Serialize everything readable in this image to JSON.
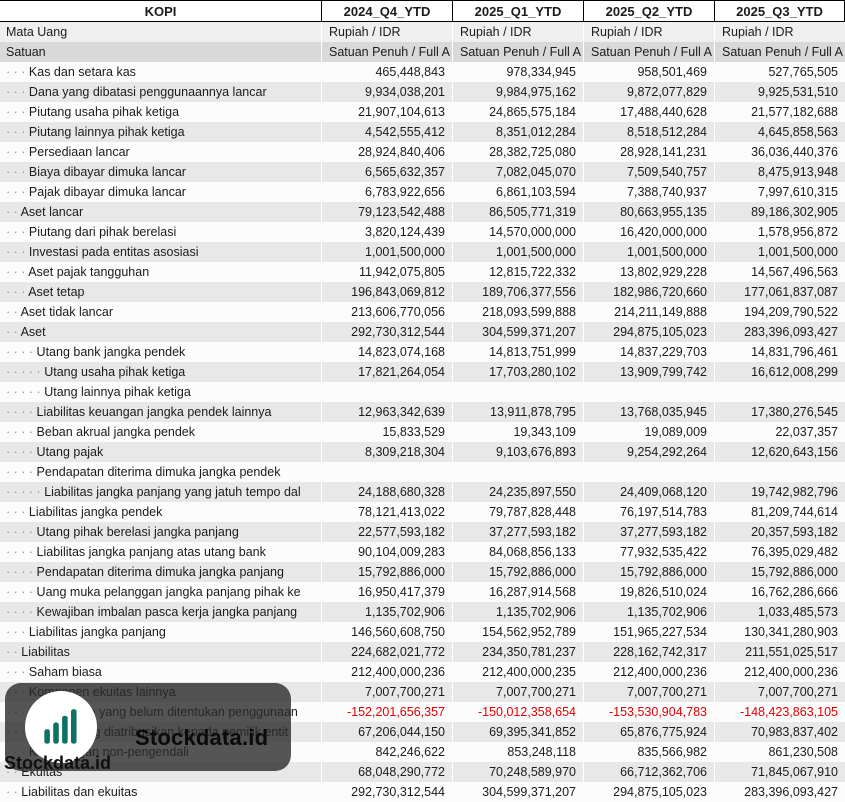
{
  "header": {
    "ticker": "KOPI",
    "columns": [
      "2024_Q4_YTD",
      "2025_Q1_YTD",
      "2025_Q2_YTD",
      "2025_Q3_YTD"
    ]
  },
  "meta_rows": [
    {
      "label": "Mata Uang",
      "values": [
        "Rupiah / IDR",
        "Rupiah / IDR",
        "Rupiah / IDR",
        "Rupiah / IDR"
      ]
    },
    {
      "label": "Satuan",
      "values": [
        "Satuan Penuh / Full A",
        "Satuan Penuh / Full A",
        "Satuan Penuh / Full A",
        "Satuan Penuh / Full A"
      ]
    }
  ],
  "rows": [
    {
      "label": "Kas dan setara kas",
      "dots": 3,
      "negative": false,
      "values": [
        "465,448,843",
        "978,334,945",
        "958,501,469",
        "527,765,505"
      ]
    },
    {
      "label": "Dana yang dibatasi penggunaannya lancar",
      "dots": 3,
      "negative": false,
      "values": [
        "9,934,038,201",
        "9,984,975,162",
        "9,872,077,829",
        "9,925,531,510"
      ]
    },
    {
      "label": "Piutang usaha pihak ketiga",
      "dots": 3,
      "negative": false,
      "values": [
        "21,907,104,613",
        "24,865,575,184",
        "17,488,440,628",
        "21,577,182,688"
      ]
    },
    {
      "label": "Piutang lainnya pihak ketiga",
      "dots": 3,
      "negative": false,
      "values": [
        "4,542,555,412",
        "8,351,012,284",
        "8,518,512,284",
        "4,645,858,563"
      ]
    },
    {
      "label": "Persediaan lancar",
      "dots": 3,
      "negative": false,
      "values": [
        "28,924,840,406",
        "28,382,725,080",
        "28,928,141,231",
        "36,036,440,376"
      ]
    },
    {
      "label": "Biaya dibayar dimuka lancar",
      "dots": 3,
      "negative": false,
      "values": [
        "6,565,632,357",
        "7,082,045,070",
        "7,509,540,757",
        "8,475,913,948"
      ]
    },
    {
      "label": "Pajak dibayar dimuka lancar",
      "dots": 3,
      "negative": false,
      "values": [
        "6,783,922,656",
        "6,861,103,594",
        "7,388,740,937",
        "7,997,610,315"
      ]
    },
    {
      "label": "Aset lancar",
      "dots": 2,
      "negative": false,
      "values": [
        "79,123,542,488",
        "86,505,771,319",
        "80,663,955,135",
        "89,186,302,905"
      ]
    },
    {
      "label": "Piutang dari pihak berelasi",
      "dots": 3,
      "negative": false,
      "values": [
        "3,820,124,439",
        "14,570,000,000",
        "16,420,000,000",
        "1,578,956,872"
      ]
    },
    {
      "label": "Investasi pada entitas asosiasi",
      "dots": 3,
      "negative": false,
      "values": [
        "1,001,500,000",
        "1,001,500,000",
        "1,001,500,000",
        "1,001,500,000"
      ]
    },
    {
      "label": "Aset pajak tangguhan",
      "dots": 3,
      "negative": false,
      "values": [
        "11,942,075,805",
        "12,815,722,332",
        "13,802,929,228",
        "14,567,496,563"
      ]
    },
    {
      "label": "Aset tetap",
      "dots": 3,
      "negative": false,
      "values": [
        "196,843,069,812",
        "189,706,377,556",
        "182,986,720,660",
        "177,061,837,087"
      ]
    },
    {
      "label": "Aset tidak lancar",
      "dots": 2,
      "negative": false,
      "values": [
        "213,606,770,056",
        "218,093,599,888",
        "214,211,149,888",
        "194,209,790,522"
      ]
    },
    {
      "label": "Aset",
      "dots": 2,
      "negative": false,
      "values": [
        "292,730,312,544",
        "304,599,371,207",
        "294,875,105,023",
        "283,396,093,427"
      ]
    },
    {
      "label": "Utang bank jangka pendek",
      "dots": 4,
      "negative": false,
      "values": [
        "14,823,074,168",
        "14,813,751,999",
        "14,837,229,703",
        "14,831,796,461"
      ]
    },
    {
      "label": "Utang usaha pihak ketiga",
      "dots": 5,
      "negative": false,
      "values": [
        "17,821,264,054",
        "17,703,280,102",
        "13,909,799,742",
        "16,612,008,299"
      ]
    },
    {
      "label": "Utang lainnya pihak ketiga",
      "dots": 5,
      "negative": false,
      "values": [
        "",
        "",
        "",
        ""
      ]
    },
    {
      "label": "Liabilitas keuangan jangka pendek lainnya",
      "dots": 4,
      "negative": false,
      "values": [
        "12,963,342,639",
        "13,911,878,795",
        "13,768,035,945",
        "17,380,276,545"
      ]
    },
    {
      "label": "Beban akrual jangka pendek",
      "dots": 4,
      "negative": false,
      "values": [
        "15,833,529",
        "19,343,109",
        "19,089,009",
        "22,037,357"
      ]
    },
    {
      "label": "Utang pajak",
      "dots": 4,
      "negative": false,
      "values": [
        "8,309,218,304",
        "9,103,676,893",
        "9,254,292,264",
        "12,620,643,156"
      ]
    },
    {
      "label": "Pendapatan diterima dimuka jangka pendek",
      "dots": 4,
      "negative": false,
      "values": [
        "",
        "",
        "",
        ""
      ]
    },
    {
      "label": "Liabilitas jangka panjang yang jatuh tempo dal",
      "dots": 5,
      "negative": false,
      "values": [
        "24,188,680,328",
        "24,235,897,550",
        "24,409,068,120",
        "19,742,982,796"
      ]
    },
    {
      "label": "Liabilitas jangka pendek",
      "dots": 3,
      "negative": false,
      "values": [
        "78,121,413,022",
        "79,787,828,448",
        "76,197,514,783",
        "81,209,744,614"
      ]
    },
    {
      "label": "Utang pihak berelasi jangka panjang",
      "dots": 4,
      "negative": false,
      "values": [
        "22,577,593,182",
        "37,277,593,182",
        "37,277,593,182",
        "20,357,593,182"
      ]
    },
    {
      "label": "Liabilitas jangka panjang atas utang bank",
      "dots": 4,
      "negative": false,
      "values": [
        "90,104,009,283",
        "84,068,856,133",
        "77,932,535,422",
        "76,395,029,482"
      ]
    },
    {
      "label": "Pendapatan diterima dimuka jangka panjang",
      "dots": 4,
      "negative": false,
      "values": [
        "15,792,886,000",
        "15,792,886,000",
        "15,792,886,000",
        "15,792,886,000"
      ]
    },
    {
      "label": "Uang muka pelanggan jangka panjang pihak ke",
      "dots": 4,
      "negative": false,
      "values": [
        "16,950,417,379",
        "16,287,914,568",
        "19,826,510,024",
        "16,762,286,666"
      ]
    },
    {
      "label": "Kewajiban imbalan pasca kerja jangka panjang",
      "dots": 4,
      "negative": false,
      "values": [
        "1,135,702,906",
        "1,135,702,906",
        "1,135,702,906",
        "1,033,485,573"
      ]
    },
    {
      "label": "Liabilitas jangka panjang",
      "dots": 3,
      "negative": false,
      "values": [
        "146,560,608,750",
        "154,562,952,789",
        "151,965,227,534",
        "130,341,280,903"
      ]
    },
    {
      "label": "Liabilitas",
      "dots": 2,
      "negative": false,
      "values": [
        "224,682,021,772",
        "234,350,781,237",
        "228,162,742,317",
        "211,551,025,517"
      ]
    },
    {
      "label": "Saham biasa",
      "dots": 3,
      "negative": false,
      "values": [
        "212,400,000,236",
        "212,400,000,235",
        "212,400,000,236",
        "212,400,000,236"
      ]
    },
    {
      "label": "Komponen ekuitas lainnya",
      "dots": 3,
      "negative": false,
      "values": [
        "7,007,700,271",
        "7,007,700,271",
        "7,007,700,271",
        "7,007,700,271"
      ]
    },
    {
      "label": "Saldo laba yang belum ditentukan penggunaan",
      "dots": 4,
      "negative": true,
      "values": [
        "-152,201,656,357",
        "-150,012,358,654",
        "-153,530,904,783",
        "-148,423,863,105"
      ]
    },
    {
      "label": "Ekuitas yang diatribusikan kepada pemilik entit",
      "dots": 3,
      "negative": false,
      "values": [
        "67,206,044,150",
        "69,395,341,852",
        "65,876,775,924",
        "70,983,837,402"
      ]
    },
    {
      "label": "Kepentingan non-pengendali",
      "dots": 3,
      "negative": false,
      "values": [
        "842,246,622",
        "853,248,118",
        "835,566,982",
        "861,230,508"
      ]
    },
    {
      "label": "Ekuitas",
      "dots": 2,
      "negative": false,
      "values": [
        "68,048,290,772",
        "70,248,589,970",
        "66,712,362,706",
        "71,845,067,910"
      ]
    },
    {
      "label": "Liabilitas dan ekuitas",
      "dots": 2,
      "negative": false,
      "values": [
        "292,730,312,544",
        "304,599,371,207",
        "294,875,105,023",
        "283,396,093,427"
      ]
    }
  ],
  "watermark": {
    "brand_large": "Stockdata.id",
    "brand_small": "Stockdata.id",
    "logo_icon": "bar-chart-icon",
    "logo_color": "#0f7163"
  },
  "colors": {
    "negative_value": "#e00000",
    "row_alt": "#e8e8e8"
  }
}
